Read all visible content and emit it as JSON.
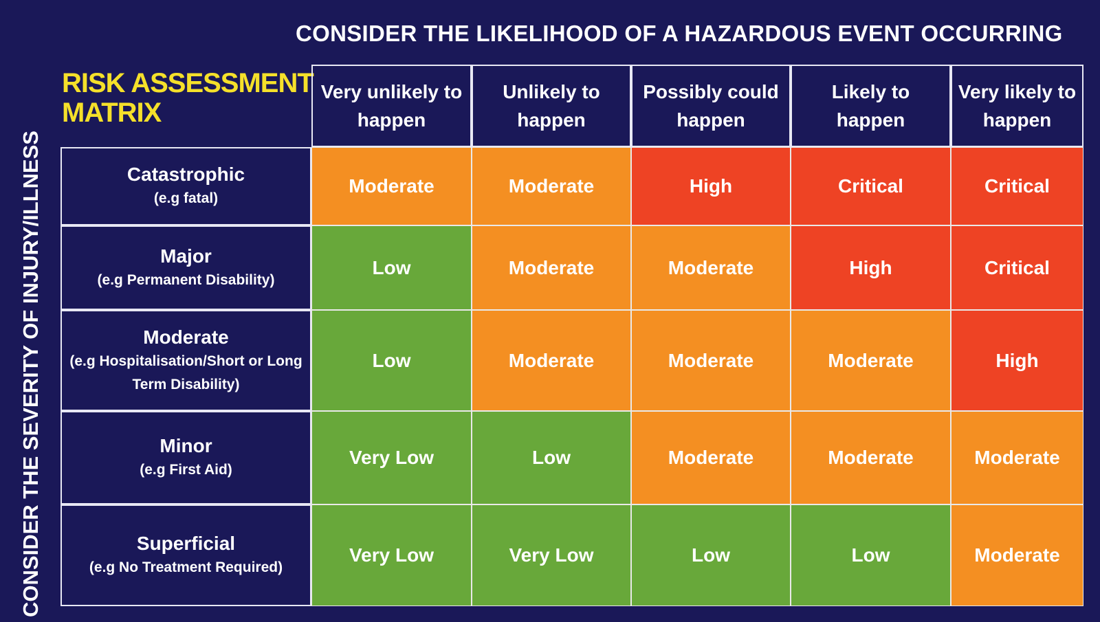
{
  "header": {
    "likelihood_title": "CONSIDER THE LIKELIHOOD OF A HAZARDOUS EVENT OCCURRING",
    "severity_title": "CONSIDER THE SEVERITY OF INJURY/ILLNESS",
    "matrix_title_line1": "RISK ASSESSMENT",
    "matrix_title_line2": "MATRIX"
  },
  "columns": [
    {
      "line1": "Very unlikely to",
      "line2": "happen"
    },
    {
      "line1": "Unlikely to",
      "line2": "happen"
    },
    {
      "line1": "Possibly could",
      "line2": "happen"
    },
    {
      "line1": "Likely to",
      "line2": "happen"
    },
    {
      "line1": "Very likely to",
      "line2": "happen"
    }
  ],
  "rows": [
    {
      "label": "Catastrophic",
      "example": "(e.g fatal)",
      "cells": [
        "Moderate",
        "Moderate",
        "High",
        "Critical",
        "Critical"
      ]
    },
    {
      "label": "Major",
      "example": "(e.g Permanent Disability)",
      "cells": [
        "Low",
        "Moderate",
        "Moderate",
        "High",
        "Critical"
      ]
    },
    {
      "label": "Moderate",
      "example": "(e.g Hospitalisation/Short or Long Term Disability)",
      "cells": [
        "Low",
        "Moderate",
        "Moderate",
        "Moderate",
        "High"
      ]
    },
    {
      "label": "Minor",
      "example": "(e.g First Aid)",
      "cells": [
        "Very Low",
        "Low",
        "Moderate",
        "Moderate",
        "Moderate"
      ]
    },
    {
      "label": "Superficial",
      "example": "(e.g No Treatment Required)",
      "cells": [
        "Very Low",
        "Very Low",
        "Low",
        "Low",
        "Moderate"
      ]
    }
  ],
  "risk_colors": {
    "Very Low": "#68a83a",
    "Low": "#68a83a",
    "Moderate": "#f48f22",
    "High": "#ee4324",
    "Critical": "#ee4324"
  },
  "theme": {
    "background": "#1a1858",
    "matrix_title_color": "#f5e02a",
    "grid_line": "#e8e8f4"
  }
}
